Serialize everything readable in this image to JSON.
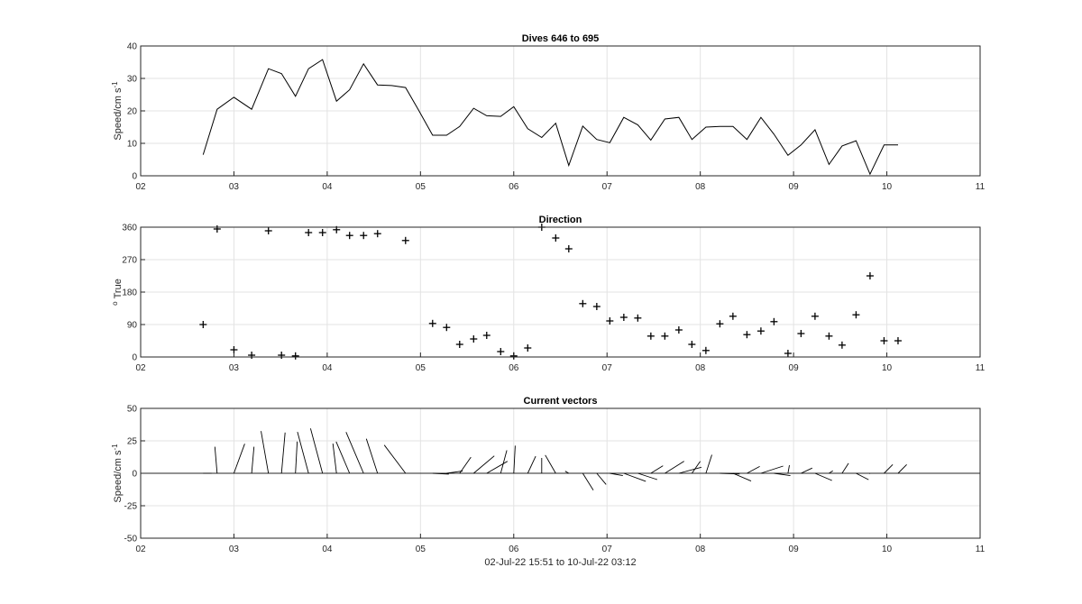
{
  "chart_data": [
    {
      "type": "line",
      "title": "Dives 646 to 695",
      "ylabel": "Speed/cm s",
      "ylabel_sup": "-1",
      "xticks": [
        "02",
        "03",
        "04",
        "05",
        "06",
        "07",
        "08",
        "09",
        "10",
        "11"
      ],
      "xlim": [
        2,
        11
      ],
      "ylim": [
        0,
        40
      ],
      "yticks": [
        0,
        10,
        20,
        30,
        40
      ],
      "grid": true,
      "x": [
        2.67,
        2.82,
        3.0,
        3.19,
        3.37,
        3.51,
        3.66,
        3.8,
        3.95,
        4.1,
        4.24,
        4.39,
        4.54,
        4.69,
        4.84,
        4.98,
        5.13,
        5.28,
        5.42,
        5.57,
        5.71,
        5.86,
        6.0,
        6.15,
        6.3,
        6.45,
        6.59,
        6.74,
        6.89,
        7.03,
        7.18,
        7.33,
        7.47,
        7.62,
        7.77,
        7.91,
        8.06,
        8.21,
        8.35,
        8.5,
        8.65,
        8.79,
        8.94,
        9.08,
        9.23,
        9.38,
        9.52,
        9.67,
        9.82,
        9.97,
        10.12
      ],
      "values": [
        6.5,
        20.5,
        24.2,
        20.5,
        33,
        31.5,
        24.5,
        33,
        35.8,
        23,
        26.5,
        34.5,
        28,
        27.8,
        27.2,
        20.2,
        12.5,
        12.5,
        15.2,
        20.8,
        18.5,
        18.3,
        21.3,
        14.5,
        11.8,
        16.2,
        3.2,
        15.3,
        11.2,
        10.2,
        18,
        15.7,
        11,
        17.5,
        18,
        11.2,
        15,
        15.2,
        15.2,
        11.2,
        18,
        12.8,
        6.3,
        9.5,
        14.2,
        3.5,
        9.2,
        10.8,
        0.5,
        9.5,
        9.5
      ]
    },
    {
      "type": "scatter",
      "title": "Direction",
      "ylabel": "True",
      "ylabel_prefix": "o",
      "xticks": [
        "02",
        "03",
        "04",
        "05",
        "06",
        "07",
        "08",
        "09",
        "10",
        "11"
      ],
      "xlim": [
        2,
        11
      ],
      "ylim": [
        0,
        360
      ],
      "yticks": [
        0,
        90,
        180,
        270,
        360
      ],
      "grid": true,
      "marker": "+",
      "x": [
        2.67,
        2.82,
        3.0,
        3.19,
        3.37,
        3.51,
        3.66,
        3.8,
        3.95,
        4.1,
        4.24,
        4.39,
        4.54,
        4.84,
        5.13,
        5.28,
        5.42,
        5.57,
        5.71,
        5.86,
        6.0,
        6.15,
        6.3,
        6.45,
        6.59,
        6.74,
        6.89,
        7.03,
        7.18,
        7.33,
        7.47,
        7.62,
        7.77,
        7.91,
        8.06,
        8.21,
        8.35,
        8.5,
        8.65,
        8.79,
        8.94,
        9.08,
        9.23,
        9.38,
        9.52,
        9.67,
        9.82,
        9.97,
        10.12
      ],
      "values": [
        90,
        355,
        20,
        5,
        350,
        5,
        3,
        345,
        345,
        353,
        337,
        337,
        342,
        323,
        93,
        82,
        35,
        50,
        60,
        15,
        3,
        25,
        360,
        330,
        300,
        148,
        140,
        100,
        110,
        108,
        58,
        58,
        75,
        35,
        18,
        92,
        113,
        62,
        72,
        98,
        10,
        65,
        113,
        58,
        33,
        117,
        225,
        45,
        45
      ]
    },
    {
      "type": "vector",
      "title": "Current vectors",
      "ylabel": "Speed/cm s",
      "ylabel_sup": "-1",
      "xlabel": "02-Jul-22 15:51 to 10-Jul-22 03:12",
      "xticks": [
        "02",
        "03",
        "04",
        "05",
        "06",
        "07",
        "08",
        "09",
        "10",
        "11"
      ],
      "xlim": [
        2,
        11
      ],
      "ylim": [
        -50,
        50
      ],
      "yticks": [
        -50,
        -25,
        0,
        25,
        50
      ],
      "grid": true,
      "direction_deg": [
        90,
        355,
        20,
        5,
        350,
        5,
        3,
        345,
        345,
        353,
        337,
        337,
        342,
        323,
        93,
        82,
        35,
        50,
        60,
        15,
        3,
        25,
        360,
        330,
        300,
        148,
        140,
        100,
        110,
        108,
        58,
        58,
        75,
        35,
        18,
        92,
        113,
        62,
        72,
        98,
        10,
        65,
        113,
        58,
        33,
        117,
        225,
        45,
        45
      ],
      "speed": [
        6.5,
        20.5,
        24.2,
        20.5,
        33,
        31.5,
        24.5,
        33,
        35.8,
        23,
        26.5,
        34.5,
        28,
        27.2,
        12.5,
        12.5,
        15.2,
        20.8,
        18.5,
        18.3,
        21.3,
        14.5,
        11.8,
        16.2,
        3.2,
        15.3,
        11.2,
        10.2,
        18,
        15.7,
        11,
        17.5,
        18,
        11.2,
        15,
        15.2,
        15.2,
        11.2,
        18,
        12.8,
        6.3,
        9.5,
        14.2,
        3.5,
        9.2,
        10.8,
        0.5,
        9.5,
        9.5
      ],
      "x": [
        2.67,
        2.82,
        3.0,
        3.19,
        3.37,
        3.51,
        3.66,
        3.8,
        3.95,
        4.1,
        4.24,
        4.39,
        4.54,
        4.84,
        5.13,
        5.28,
        5.42,
        5.57,
        5.71,
        5.86,
        6.0,
        6.15,
        6.3,
        6.45,
        6.59,
        6.74,
        6.89,
        7.03,
        7.18,
        7.33,
        7.47,
        7.62,
        7.77,
        7.91,
        8.06,
        8.21,
        8.35,
        8.5,
        8.65,
        8.79,
        8.94,
        9.08,
        9.23,
        9.38,
        9.52,
        9.67,
        9.82,
        9.97,
        10.12
      ]
    }
  ]
}
